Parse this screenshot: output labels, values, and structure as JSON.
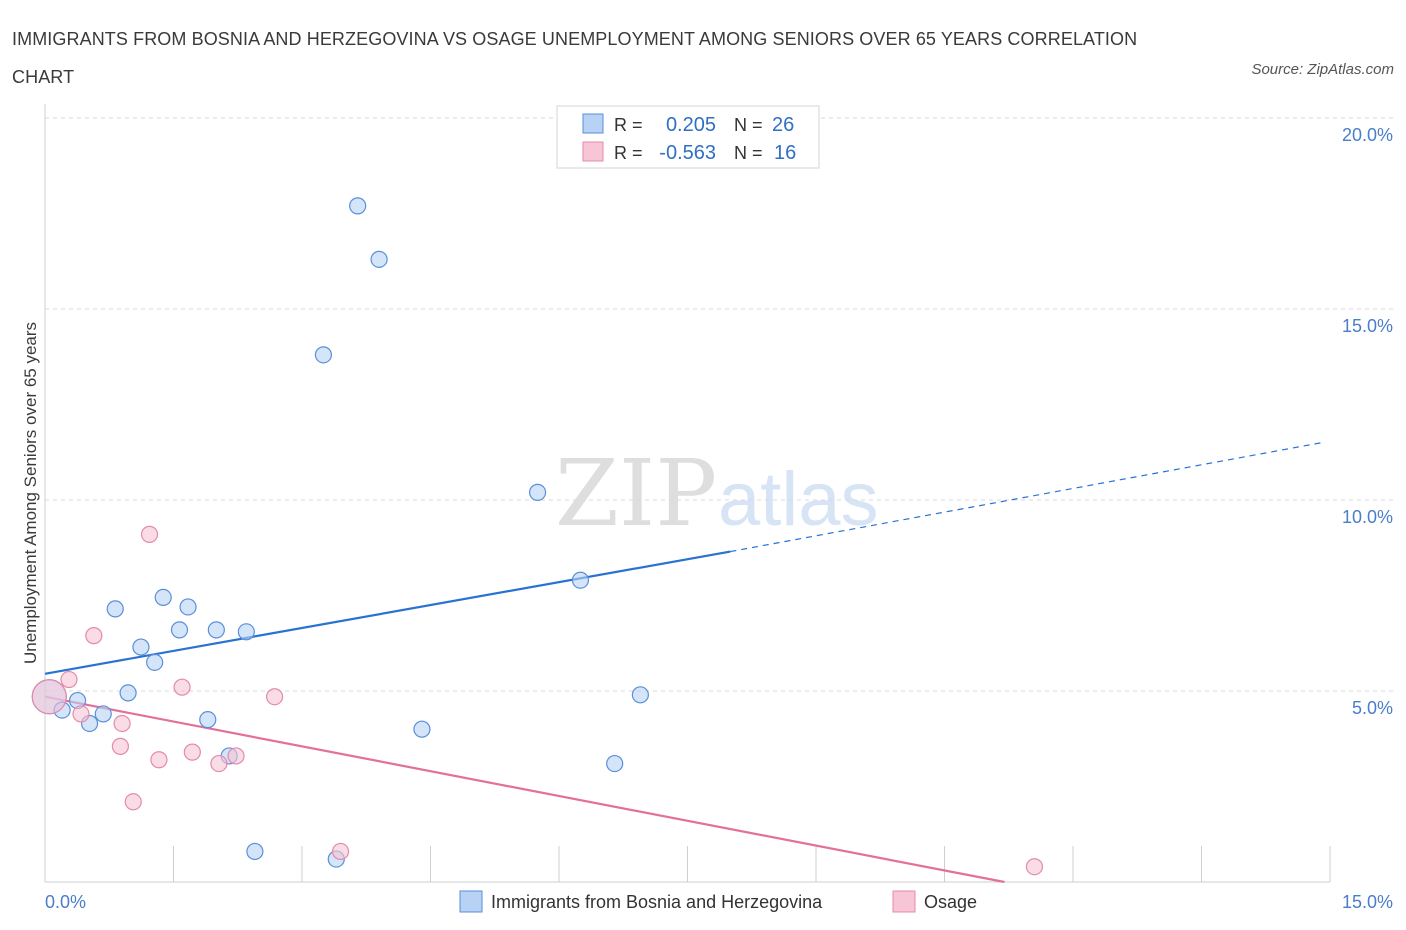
{
  "title": "IMMIGRANTS FROM BOSNIA AND HERZEGOVINA VS OSAGE UNEMPLOYMENT AMONG SENIORS OVER 65 YEARS CORRELATION CHART",
  "source": "Source: ZipAtlas.com",
  "watermark": {
    "zip": "ZIP",
    "atlas": "atlas"
  },
  "colors": {
    "blue_fill": "#b8d2f5",
    "blue_stroke": "#5a8fd8",
    "blue_line": "#2a72d2",
    "pink_fill": "#f7c5d5",
    "pink_stroke": "#e58aa8",
    "pink_line": "#e3709a",
    "grid": "#d9d9d9",
    "tick_text": "#4a7ec9"
  },
  "legend": {
    "rows": [
      {
        "r_label": "R =",
        "r_value": "0.205",
        "n_label": "N =",
        "n_value": "26",
        "series": "blue"
      },
      {
        "r_label": "R =",
        "r_value": "-0.563",
        "n_label": "N =",
        "n_value": "16",
        "series": "pink"
      }
    ]
  },
  "chart_data": {
    "type": "scatter",
    "title": "IMMIGRANTS FROM BOSNIA AND HERZEGOVINA VS OSAGE UNEMPLOYMENT AMONG SENIORS OVER 65 YEARS CORRELATION CHART",
    "xlabel": "",
    "ylabel": "Unemployment Among Seniors over 65 years",
    "xlim": [
      0,
      15
    ],
    "ylim": [
      0,
      20
    ],
    "x_tick_labels": [
      "0.0%",
      "15.0%"
    ],
    "y_ticks": [
      5,
      10,
      15,
      20
    ],
    "y_tick_labels": [
      "5.0%",
      "10.0%",
      "15.0%",
      "20.0%"
    ],
    "x_minor_ticks": [
      1.5,
      3,
      4.5,
      6,
      7.5,
      9,
      10.5,
      12,
      13.5,
      15
    ],
    "grid": true,
    "series": [
      {
        "name": "Immigrants from Bosnia and Herzegovina",
        "color": "blue",
        "r": 0.205,
        "n": 26,
        "trend": {
          "x0": 0,
          "y0": 5.45,
          "x1": 8.0,
          "y1": 8.65,
          "dash_x1": 14.9,
          "dash_y1": 11.5
        },
        "points": [
          {
            "x": 0.05,
            "y": 4.85,
            "big": true
          },
          {
            "x": 0.2,
            "y": 4.5
          },
          {
            "x": 0.38,
            "y": 4.75
          },
          {
            "x": 0.52,
            "y": 4.15
          },
          {
            "x": 0.68,
            "y": 4.4
          },
          {
            "x": 0.82,
            "y": 7.15
          },
          {
            "x": 0.97,
            "y": 4.95
          },
          {
            "x": 1.12,
            "y": 6.15
          },
          {
            "x": 1.28,
            "y": 5.75
          },
          {
            "x": 1.38,
            "y": 7.45
          },
          {
            "x": 1.57,
            "y": 6.6
          },
          {
            "x": 1.67,
            "y": 7.2
          },
          {
            "x": 1.9,
            "y": 4.25
          },
          {
            "x": 2.0,
            "y": 6.6
          },
          {
            "x": 2.15,
            "y": 3.3
          },
          {
            "x": 2.35,
            "y": 6.55
          },
          {
            "x": 2.45,
            "y": 0.8
          },
          {
            "x": 3.25,
            "y": 13.8
          },
          {
            "x": 3.4,
            "y": 0.6
          },
          {
            "x": 3.65,
            "y": 17.7
          },
          {
            "x": 3.9,
            "y": 16.3
          },
          {
            "x": 4.4,
            "y": 4.0
          },
          {
            "x": 5.75,
            "y": 10.2
          },
          {
            "x": 6.25,
            "y": 7.9
          },
          {
            "x": 6.65,
            "y": 3.1
          },
          {
            "x": 6.95,
            "y": 4.9
          }
        ]
      },
      {
        "name": "Osage",
        "color": "pink",
        "r": -0.563,
        "n": 16,
        "trend": {
          "x0": 0,
          "y0": 4.85,
          "x1": 11.2,
          "y1": 0.0
        },
        "points": [
          {
            "x": 0.05,
            "y": 4.85,
            "big": true
          },
          {
            "x": 0.28,
            "y": 5.3
          },
          {
            "x": 0.42,
            "y": 4.4
          },
          {
            "x": 0.57,
            "y": 6.45
          },
          {
            "x": 0.88,
            "y": 3.55
          },
          {
            "x": 0.9,
            "y": 4.15
          },
          {
            "x": 1.03,
            "y": 2.1
          },
          {
            "x": 1.22,
            "y": 9.1
          },
          {
            "x": 1.33,
            "y": 3.2
          },
          {
            "x": 1.6,
            "y": 5.1
          },
          {
            "x": 1.72,
            "y": 3.4
          },
          {
            "x": 2.03,
            "y": 3.1
          },
          {
            "x": 2.23,
            "y": 3.3
          },
          {
            "x": 2.68,
            "y": 4.85
          },
          {
            "x": 3.45,
            "y": 0.8
          },
          {
            "x": 11.55,
            "y": 0.4
          }
        ]
      }
    ]
  }
}
